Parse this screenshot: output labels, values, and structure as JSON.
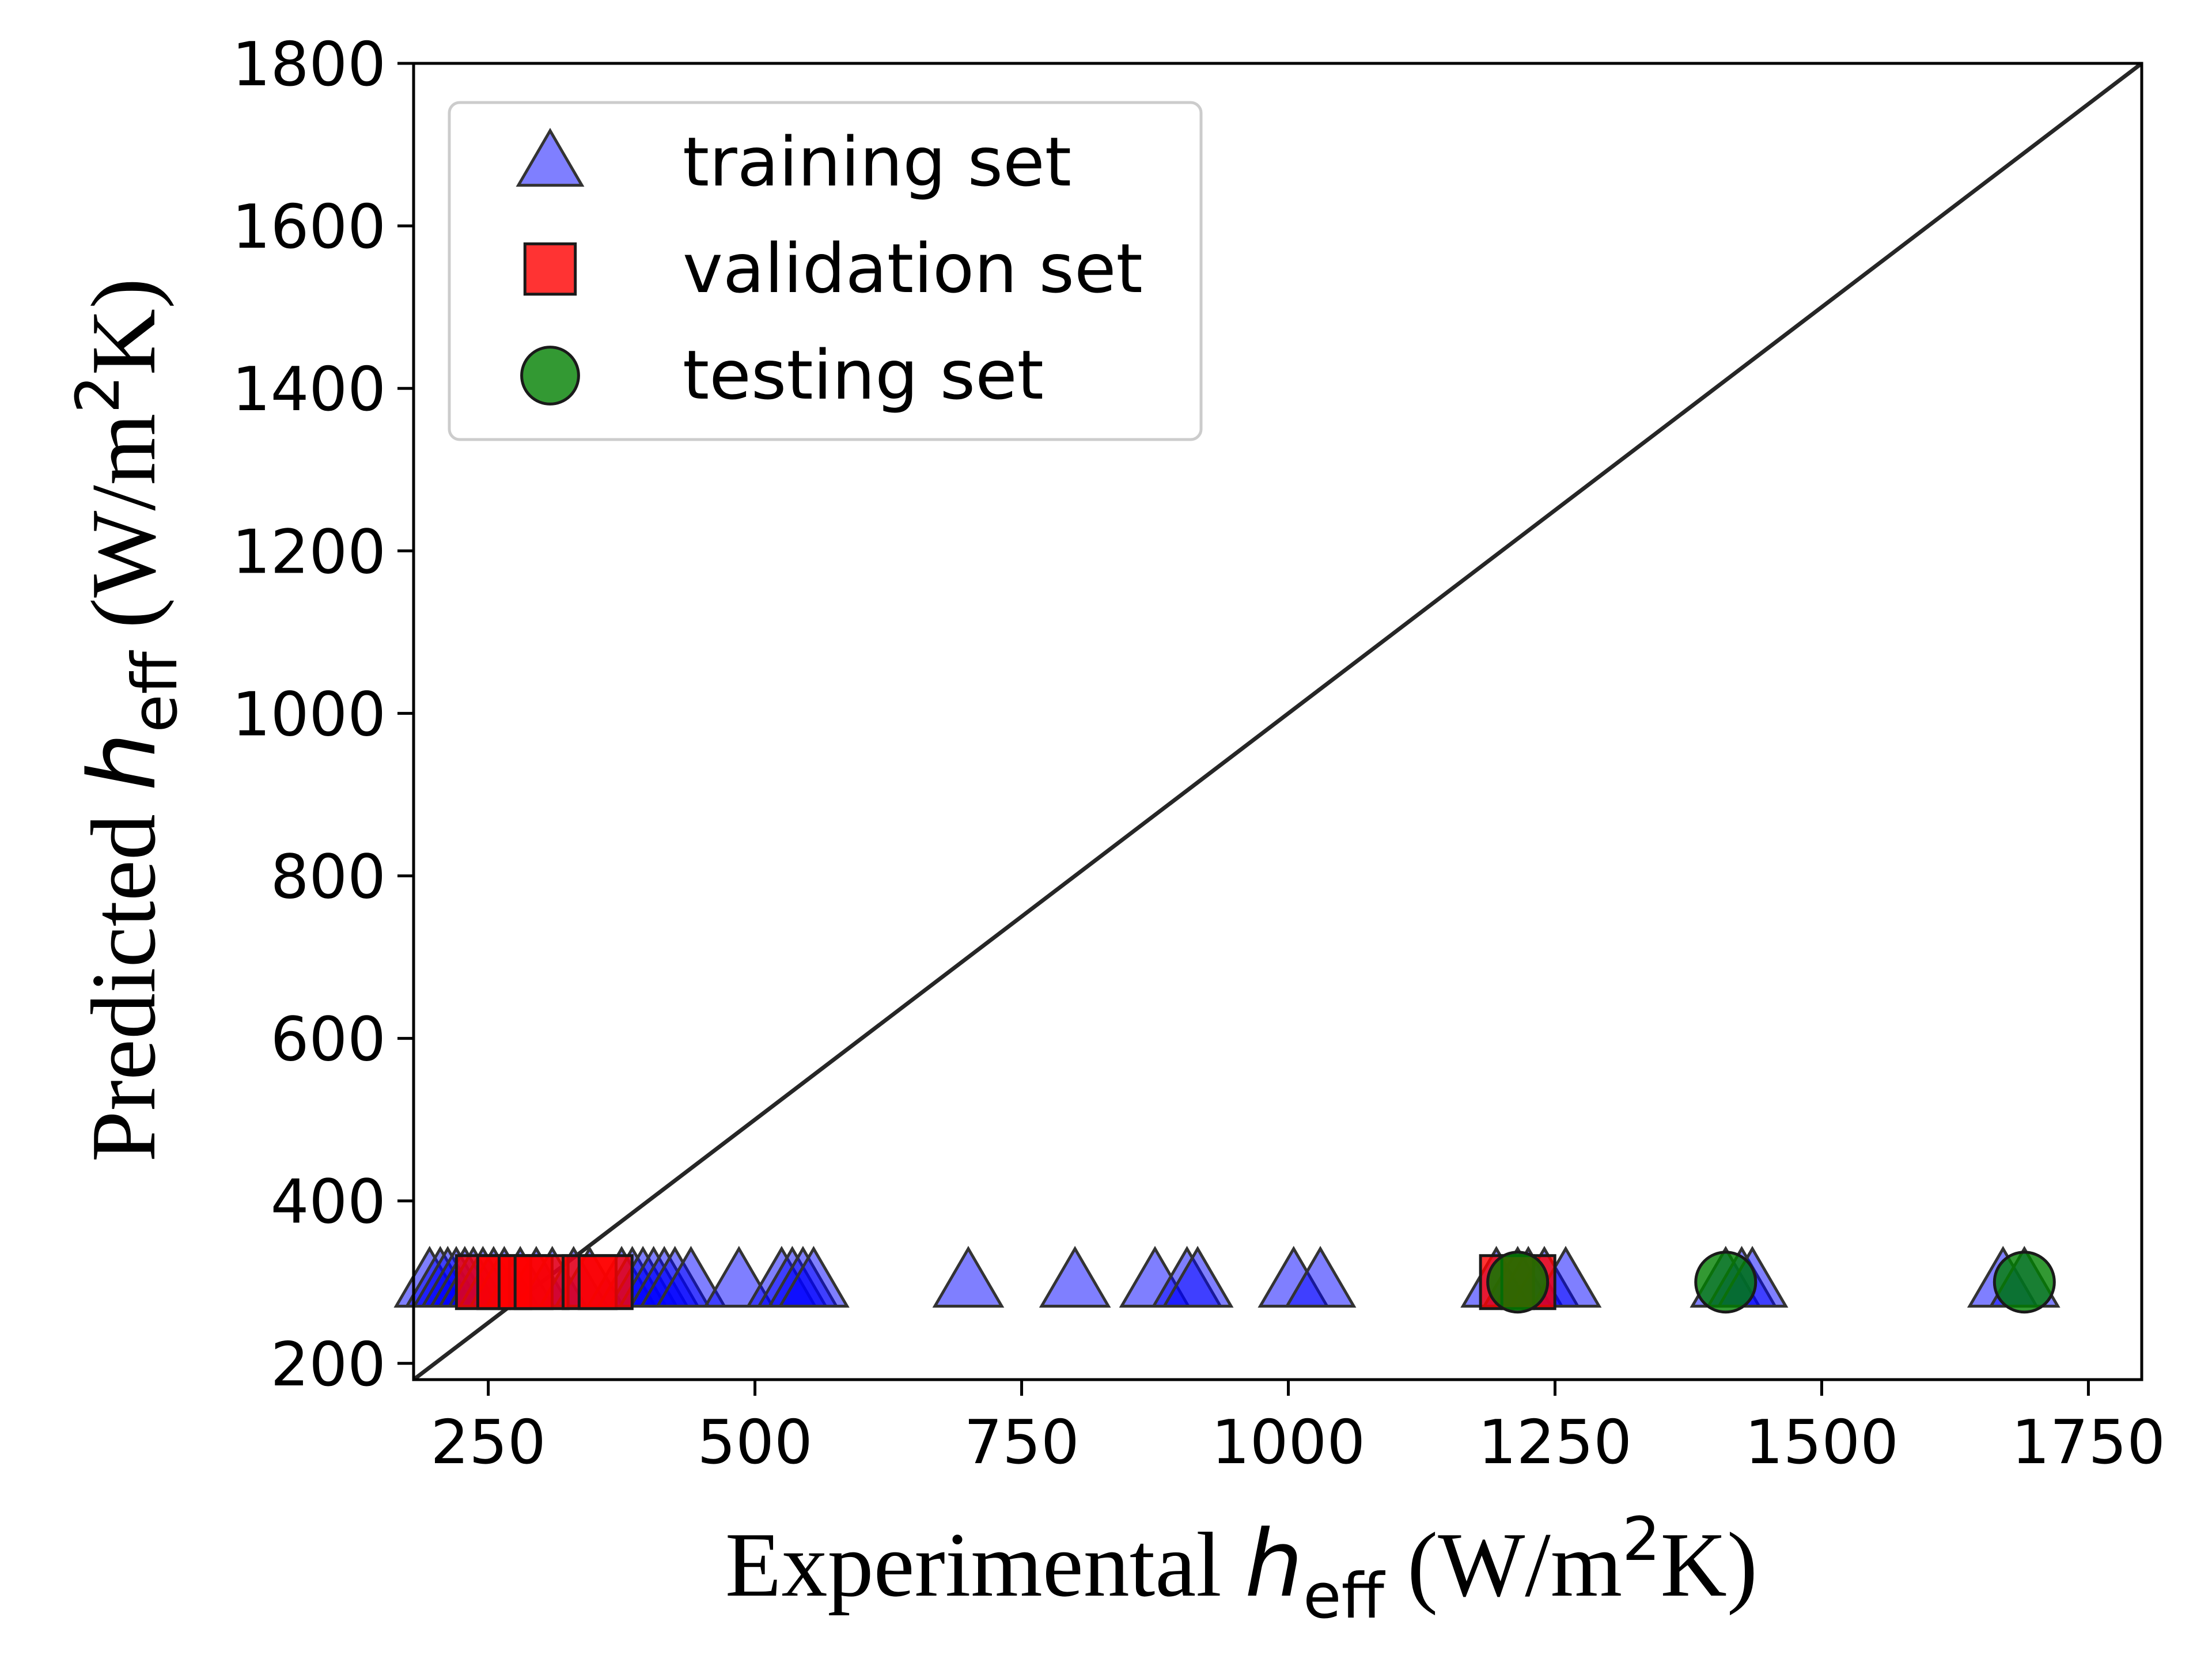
{
  "chart_data": {
    "type": "scatter",
    "xlabel": {
      "prefix": "Experimental ",
      "var": "h",
      "sub": "eff",
      "unit_pre": " (W/m",
      "sup": "2",
      "unit_post": "K)"
    },
    "ylabel": {
      "prefix": "Predicted ",
      "var": "h",
      "sub": "eff",
      "unit_pre": " (W/m",
      "sup": "2",
      "unit_post": "K)"
    },
    "xlim": [
      180,
      1800
    ],
    "ylim": [
      180,
      1800
    ],
    "xticks": [
      250,
      500,
      750,
      1000,
      1250,
      1500,
      1750
    ],
    "yticks": [
      200,
      400,
      600,
      800,
      1000,
      1200,
      1400,
      1600,
      1800
    ],
    "grid": false,
    "legend_position": "top-left",
    "reference_line": {
      "type": "y=x",
      "color": "#262626"
    },
    "series": [
      {
        "name": "training set",
        "marker": "triangle",
        "color": "#0000ff",
        "edge": "#333333",
        "x": [
          195,
          205,
          212,
          220,
          228,
          236,
          245,
          255,
          265,
          280,
          295,
          310,
          330,
          345,
          375,
          385,
          395,
          405,
          415,
          425,
          440,
          485,
          525,
          535,
          545,
          555,
          700,
          800,
          875,
          905,
          915,
          1005,
          1030,
          1195,
          1215,
          1225,
          1240,
          1260,
          1410,
          1425,
          1435,
          1670,
          1690
        ],
        "y": [
          300,
          300,
          300,
          300,
          300,
          300,
          300,
          300,
          300,
          300,
          300,
          300,
          300,
          300,
          300,
          300,
          300,
          300,
          300,
          300,
          300,
          300,
          300,
          300,
          300,
          300,
          300,
          300,
          300,
          300,
          300,
          300,
          300,
          300,
          300,
          300,
          300,
          300,
          300,
          300,
          300,
          300,
          300
        ]
      },
      {
        "name": "validation set",
        "marker": "square",
        "color": "#ff0000",
        "edge": "#1a1a1a",
        "x": [
          245,
          265,
          285,
          300,
          345,
          360,
          1205,
          1225
        ],
        "y": [
          300,
          300,
          300,
          300,
          300,
          300,
          300,
          300
        ]
      },
      {
        "name": "testing set",
        "marker": "circle",
        "color": "#008000",
        "edge": "#1a1a1a",
        "x": [
          1215,
          1410,
          1690
        ],
        "y": [
          300,
          300,
          300
        ]
      }
    ]
  }
}
